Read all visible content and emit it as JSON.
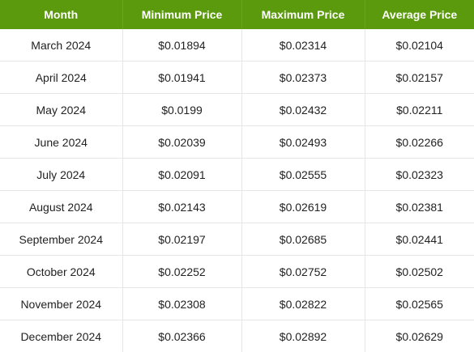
{
  "table": {
    "headers": [
      "Month",
      "Minimum Price",
      "Maximum Price",
      "Average Price"
    ],
    "rows": [
      [
        "March 2024",
        "$0.01894",
        "$0.02314",
        "$0.02104"
      ],
      [
        "April 2024",
        "$0.01941",
        "$0.02373",
        "$0.02157"
      ],
      [
        "May 2024",
        "$0.0199",
        "$0.02432",
        "$0.02211"
      ],
      [
        "June 2024",
        "$0.02039",
        "$0.02493",
        "$0.02266"
      ],
      [
        "July 2024",
        "$0.02091",
        "$0.02555",
        "$0.02323"
      ],
      [
        "August 2024",
        "$0.02143",
        "$0.02619",
        "$0.02381"
      ],
      [
        "September 2024",
        "$0.02197",
        "$0.02685",
        "$0.02441"
      ],
      [
        "October 2024",
        "$0.02252",
        "$0.02752",
        "$0.02502"
      ],
      [
        "November 2024",
        "$0.02308",
        "$0.02822",
        "$0.02565"
      ],
      [
        "December 2024",
        "$0.02366",
        "$0.02892",
        "$0.02629"
      ]
    ]
  },
  "colors": {
    "header_background": "#5b9a0d",
    "header_text": "#ffffff",
    "cell_text": "#222222",
    "cell_border": "#e6e6e6"
  }
}
